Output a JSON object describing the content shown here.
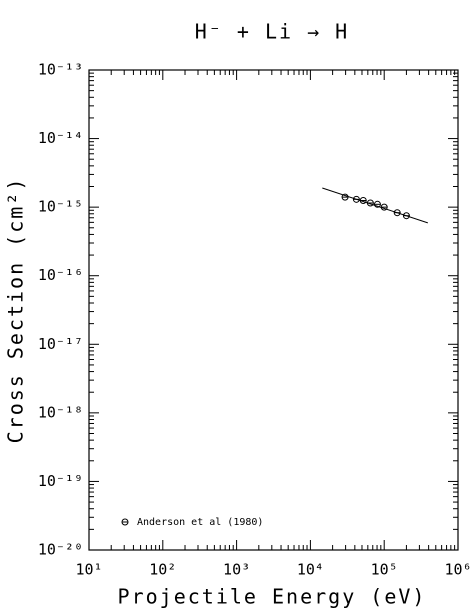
{
  "chart_data": {
    "type": "scatter",
    "title": "H⁻ + Li → H",
    "xlabel": "Projectile Energy (eV)",
    "ylabel": "Cross Section (cm²)",
    "xscale": "log",
    "yscale": "log",
    "minor_ticks": true,
    "xlim": [
      10,
      1000000
    ],
    "ylim": [
      1e-20,
      1e-13
    ],
    "xticks": [
      {
        "value": 10,
        "label": "10¹"
      },
      {
        "value": 100,
        "label": "10²"
      },
      {
        "value": 1000,
        "label": "10³"
      },
      {
        "value": 10000,
        "label": "10⁴"
      },
      {
        "value": 100000,
        "label": "10⁵"
      },
      {
        "value": 1000000,
        "label": "10⁶"
      }
    ],
    "yticks": [
      {
        "value": 1e-20,
        "label": "10⁻²⁰"
      },
      {
        "value": 1e-19,
        "label": "10⁻¹⁹"
      },
      {
        "value": 1e-18,
        "label": "10⁻¹⁸"
      },
      {
        "value": 1e-17,
        "label": "10⁻¹⁷"
      },
      {
        "value": 1e-16,
        "label": "10⁻¹⁶"
      },
      {
        "value": 1e-15,
        "label": "10⁻¹⁵"
      },
      {
        "value": 1e-14,
        "label": "10⁻¹⁴"
      },
      {
        "value": 1e-13,
        "label": "10⁻¹³"
      }
    ],
    "series": [
      {
        "name": "Anderson et al (1980)",
        "color": "#000000",
        "x": [
          29500,
          42000,
          52000,
          65000,
          81000,
          100000,
          150000,
          200000
        ],
        "values": [
          1.4e-15,
          1.3e-15,
          1.25e-15,
          1.15e-15,
          1.1e-15,
          1e-15,
          8.3e-16,
          7.5e-16
        ]
      }
    ],
    "fit": {
      "color": "#000000",
      "x": [
        14500,
        390000
      ],
      "values": [
        1.9e-15,
        5.9e-16
      ]
    }
  }
}
